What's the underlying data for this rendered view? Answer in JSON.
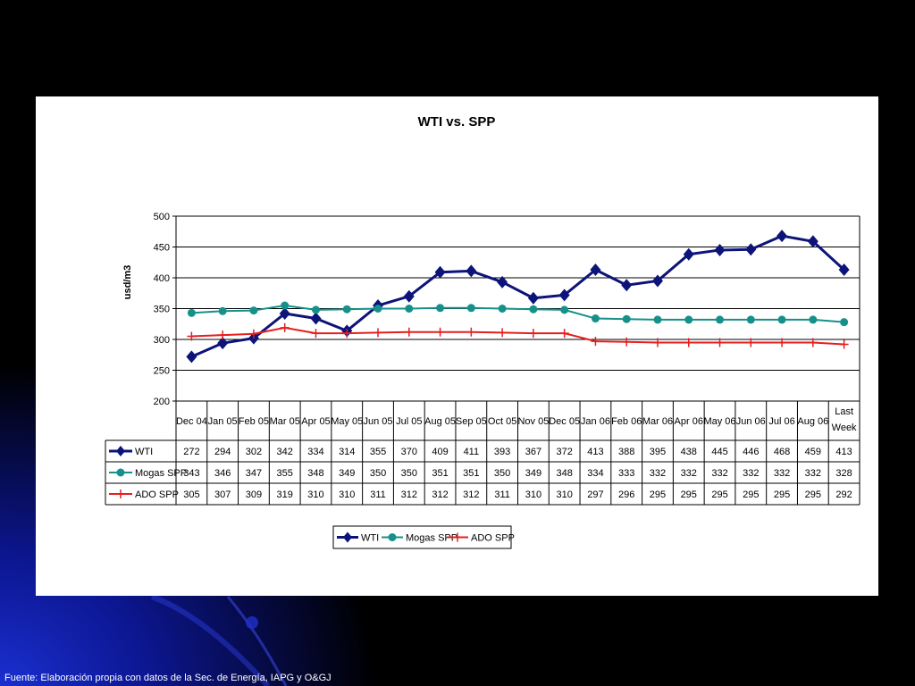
{
  "footer": {
    "source": "Fuente: Elaboración propia con datos de la Sec. de Energía, IAPG y O&GJ"
  },
  "colors": {
    "background": "#000000",
    "glow": "#1a2fd0",
    "panel": "#ffffff",
    "wti": "#0d1479",
    "mogas": "#16908a",
    "ado": "#e61e1e"
  },
  "chart_data": {
    "type": "line",
    "title": "WTI vs. SPP",
    "ylabel": "usd/m3",
    "xlabel": "",
    "ylim": [
      200,
      500
    ],
    "yticks": [
      200,
      250,
      300,
      350,
      400,
      450,
      500
    ],
    "grid": true,
    "legend_position": "bottom",
    "data_table": true,
    "categories": [
      [
        "Dec 04"
      ],
      [
        "Jan 05"
      ],
      [
        "Feb 05"
      ],
      [
        "Mar 05"
      ],
      [
        "Apr 05"
      ],
      [
        "May 05"
      ],
      [
        "Jun 05"
      ],
      [
        "Jul 05"
      ],
      [
        "Aug 05"
      ],
      [
        "Sep 05"
      ],
      [
        "Oct 05"
      ],
      [
        "Nov 05"
      ],
      [
        "Dec 05"
      ],
      [
        "Jan 06"
      ],
      [
        "Feb 06"
      ],
      [
        "Mar 06"
      ],
      [
        "Apr 06"
      ],
      [
        "May 06"
      ],
      [
        "Jun 06"
      ],
      [
        "Jul 06"
      ],
      [
        "Aug 06"
      ],
      [
        "Last",
        "Week"
      ]
    ],
    "series": [
      {
        "name": "WTI",
        "color": "#0d1479",
        "marker": "diamond",
        "values": [
          272,
          294,
          302,
          342,
          334,
          314,
          355,
          370,
          409,
          411,
          393,
          367,
          372,
          413,
          388,
          395,
          438,
          445,
          446,
          468,
          459,
          413
        ]
      },
      {
        "name": "Mogas SPP",
        "color": "#16908a",
        "marker": "circle",
        "values": [
          343,
          346,
          347,
          355,
          348,
          349,
          350,
          350,
          351,
          351,
          350,
          349,
          348,
          334,
          333,
          332,
          332,
          332,
          332,
          332,
          332,
          328
        ]
      },
      {
        "name": "ADO SPP",
        "color": "#e61e1e",
        "marker": "plus",
        "values": [
          305,
          307,
          309,
          319,
          310,
          310,
          311,
          312,
          312,
          312,
          311,
          310,
          310,
          297,
          296,
          295,
          295,
          295,
          295,
          295,
          295,
          292
        ]
      }
    ]
  }
}
